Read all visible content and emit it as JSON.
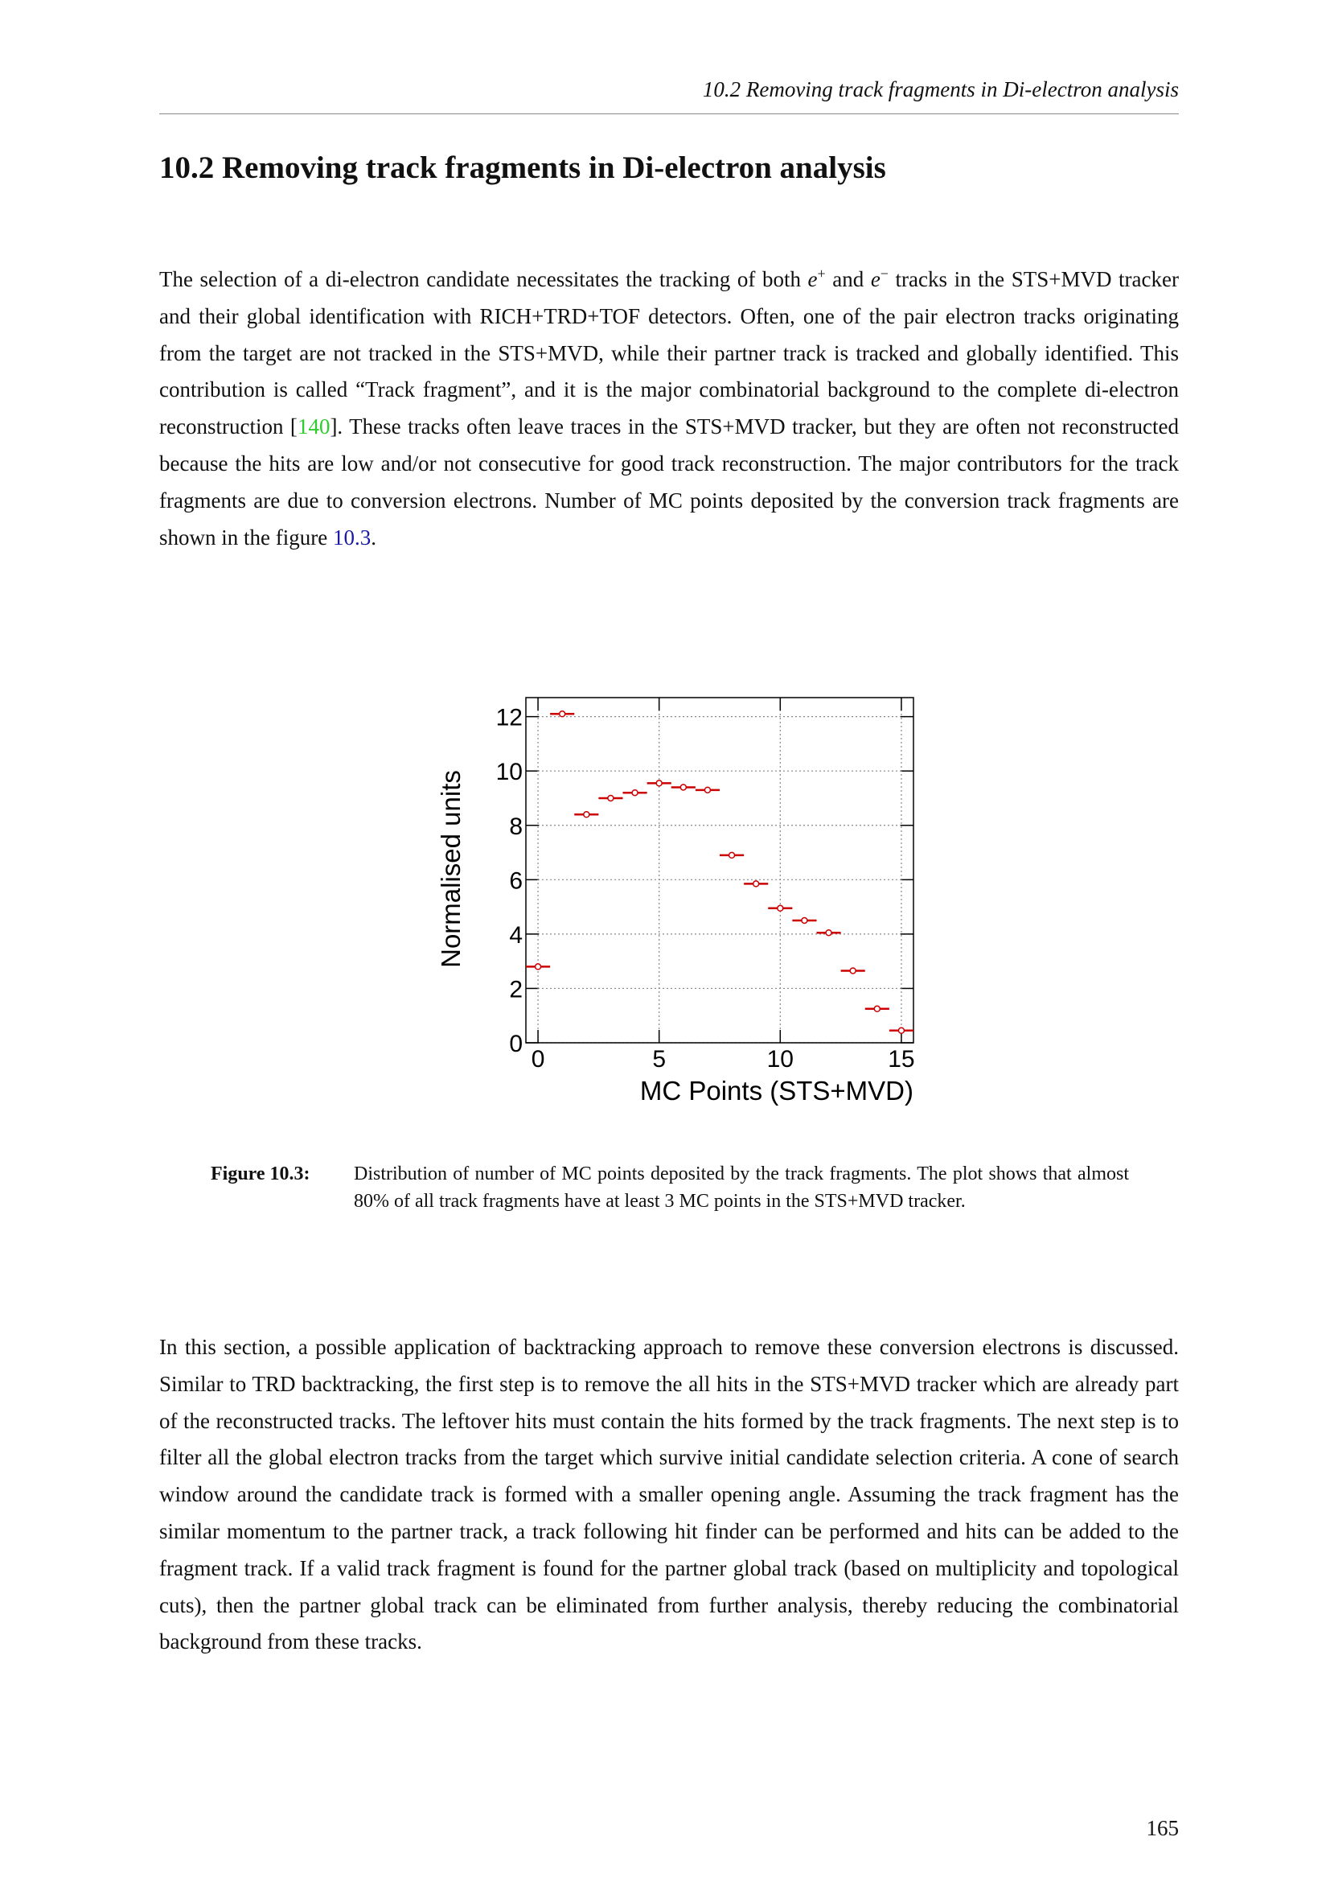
{
  "header": "10.2 Removing track fragments in Di-electron analysis",
  "section_title": "10.2  Removing track fragments in Di-electron analysis",
  "paragraphs": [
    [
      "The selection of a di-electron candidate necessitates the tracking of both ",
      "e",
      "+",
      " and ",
      "e",
      "−",
      " tracks in the STS+MVD tracker and their global identification with RICH+TRD+TOF detectors. Often, one of the pair electron tracks originating from the target are not tracked in the STS+MVD, while their partner track is tracked and globally identified. This contribution is called “Track fragment”, and it is the major combinatorial background to the complete di-electron reconstruction [",
      "140",
      "]. These tracks often leave traces in the STS+MVD tracker, but they are often not reconstructed because the hits are low and/or not consecutive for good track reconstruction. The major contributors for the track fragments are due to conversion electrons. Number of MC points deposited by the conversion track fragments are shown in the figure ",
      "10.3",
      "."
    ],
    [
      "In this section, a possible application of backtracking approach to remove these conversion electrons is discussed. Similar to TRD backtracking, the first step is to remove the all hits in the STS+MVD tracker which are already part of the reconstructed tracks. The leftover hits must contain the hits formed by the track fragments. The next step is to filter all the global electron tracks from the target which survive initial candidate selection criteria. A cone of search window around the candidate track is formed with a smaller opening angle. Assuming the track fragment has the similar momentum to the partner track, a track following hit finder can be performed and hits can be added to the fragment track. If a valid track fragment is found for the partner global track (based on multiplicity and topological cuts), then the partner global track can be eliminated from further analysis, thereby reducing the combinatorial background from these tracks."
    ]
  ],
  "figure": {
    "label": "Figure 10.3:",
    "caption": "Distribution of number of MC points deposited by the track fragments. The plot shows that almost 80% of all track fragments have at least 3 MC points in the STS+MVD tracker."
  },
  "page_number": "165",
  "chart_data": {
    "type": "scatter",
    "x_label": "MC Points (STS+MVD)",
    "y_label": "Normalised units",
    "x": [
      0,
      1,
      2,
      3,
      4,
      5,
      6,
      7,
      8,
      9,
      10,
      11,
      12,
      13,
      14,
      15
    ],
    "values": [
      2.8,
      12.1,
      8.4,
      9.0,
      9.2,
      9.55,
      9.4,
      9.3,
      6.9,
      5.85,
      4.95,
      4.5,
      4.05,
      2.65,
      1.25,
      0.45
    ],
    "xerr": 0.5,
    "color": "#cc0000",
    "xlim": [
      -0.5,
      15.5
    ],
    "ylim": [
      0,
      12.7
    ],
    "xticks": [
      0,
      5,
      10,
      15
    ],
    "yticks": [
      0,
      2,
      4,
      6,
      8,
      10,
      12
    ],
    "grid": true
  }
}
